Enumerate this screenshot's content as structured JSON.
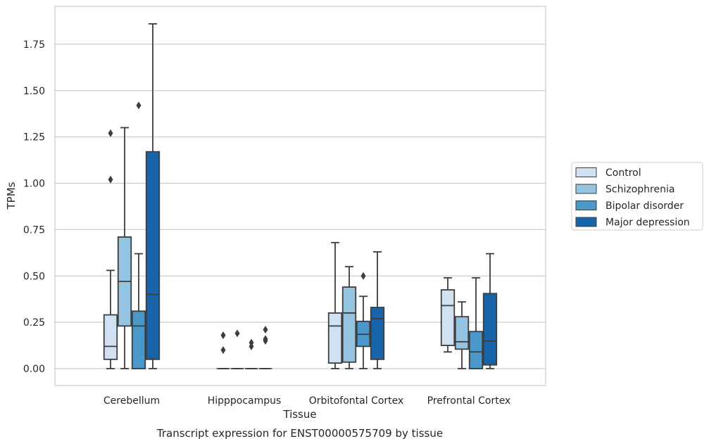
{
  "chart_data": {
    "type": "box",
    "caption": "Transcript expression for ENST00000575709 by tissue",
    "xlabel": "Tissue",
    "ylabel": "TPMs",
    "ylim": [
      -0.09,
      1.96
    ],
    "yticks": [
      "0.00",
      "0.25",
      "0.50",
      "0.75",
      "1.00",
      "1.25",
      "1.50",
      "1.75"
    ],
    "grid": "horizontal",
    "legend_position": "right",
    "categories": [
      "Cerebellum",
      "Hipppocampus",
      "Orbitofontal Cortex",
      "Prefrontal Cortex"
    ],
    "series": [
      {
        "name": "Control",
        "color": "#d0e1f2",
        "boxes": [
          {
            "whislo": 0.0,
            "q1": 0.05,
            "med": 0.12,
            "q3": 0.29,
            "whishi": 0.53,
            "fliers": [
              1.02,
              1.27
            ]
          },
          {
            "whislo": 0.0,
            "q1": 0.0,
            "med": 0.0,
            "q3": 0.0,
            "whishi": 0.0,
            "fliers": [
              0.1,
              0.18
            ]
          },
          {
            "whislo": 0.0,
            "q1": 0.03,
            "med": 0.23,
            "q3": 0.3,
            "whishi": 0.68,
            "fliers": []
          },
          {
            "whislo": 0.09,
            "q1": 0.125,
            "med": 0.34,
            "q3": 0.425,
            "whishi": 0.49,
            "fliers": []
          }
        ]
      },
      {
        "name": "Schizophrenia",
        "color": "#94c4df",
        "boxes": [
          {
            "whislo": 0.0,
            "q1": 0.23,
            "med": 0.47,
            "q3": 0.71,
            "whishi": 1.3,
            "fliers": []
          },
          {
            "whislo": 0.0,
            "q1": 0.0,
            "med": 0.0,
            "q3": 0.0,
            "whishi": 0.0,
            "fliers": [
              0.19
            ]
          },
          {
            "whislo": 0.0,
            "q1": 0.035,
            "med": 0.3,
            "q3": 0.44,
            "whishi": 0.55,
            "fliers": []
          },
          {
            "whislo": 0.0,
            "q1": 0.105,
            "med": 0.145,
            "q3": 0.28,
            "whishi": 0.36,
            "fliers": []
          }
        ]
      },
      {
        "name": "Bipolar disorder",
        "color": "#4a98c9",
        "boxes": [
          {
            "whislo": 0.0,
            "q1": 0.0,
            "med": 0.23,
            "q3": 0.31,
            "whishi": 0.62,
            "fliers": [
              1.42
            ]
          },
          {
            "whislo": 0.0,
            "q1": 0.0,
            "med": 0.0,
            "q3": 0.0,
            "whishi": 0.0,
            "fliers": [
              0.12,
              0.14
            ]
          },
          {
            "whislo": 0.0,
            "q1": 0.12,
            "med": 0.185,
            "q3": 0.255,
            "whishi": 0.39,
            "fliers": [
              0.5
            ]
          },
          {
            "whislo": 0.0,
            "q1": 0.0,
            "med": 0.09,
            "q3": 0.2,
            "whishi": 0.49,
            "fliers": []
          }
        ]
      },
      {
        "name": "Major depression",
        "color": "#1764ab",
        "boxes": [
          {
            "whislo": 0.0,
            "q1": 0.05,
            "med": 0.4,
            "q3": 1.17,
            "whishi": 1.86,
            "fliers": []
          },
          {
            "whislo": 0.0,
            "q1": 0.0,
            "med": 0.0,
            "q3": 0.0,
            "whishi": 0.0,
            "fliers": [
              0.15,
              0.16,
              0.21
            ]
          },
          {
            "whislo": 0.0,
            "q1": 0.05,
            "med": 0.27,
            "q3": 0.33,
            "whishi": 0.63,
            "fliers": []
          },
          {
            "whislo": 0.0,
            "q1": 0.02,
            "med": 0.15,
            "q3": 0.405,
            "whishi": 0.62,
            "fliers": []
          }
        ]
      }
    ]
  }
}
